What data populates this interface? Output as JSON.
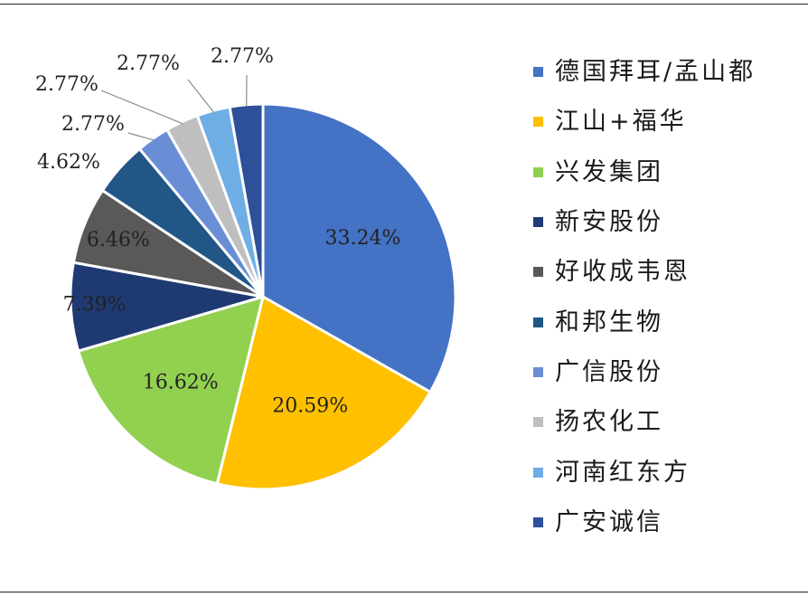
{
  "chart_data": {
    "type": "pie",
    "title": "",
    "start_angle_deg": 0,
    "direction": "clockwise",
    "legend_position": "right",
    "series": [
      {
        "name": "德国拜耳/孟山都",
        "value": 33.24,
        "label": "33.24%",
        "color": "#4472C4"
      },
      {
        "name": "江山+福华",
        "value": 20.59,
        "label": "20.59%",
        "color": "#FFC000"
      },
      {
        "name": "兴发集团",
        "value": 16.62,
        "label": "16.62%",
        "color": "#92D050"
      },
      {
        "name": "新安股份",
        "value": 7.39,
        "label": "7.39%",
        "color": "#1F3A73"
      },
      {
        "name": "好收成韦恩",
        "value": 6.46,
        "label": "6.46%",
        "color": "#595959"
      },
      {
        "name": "和邦生物",
        "value": 4.62,
        "label": "4.62%",
        "color": "#215687"
      },
      {
        "name": "广信股份",
        "value": 2.77,
        "label": "2.77%",
        "color": "#6A8ED6"
      },
      {
        "name": "扬农化工",
        "value": 2.77,
        "label": "2.77%",
        "color": "#BFBFBF"
      },
      {
        "name": "河南红东方",
        "value": 2.77,
        "label": "2.77%",
        "color": "#6FAEE4"
      },
      {
        "name": "广安诚信",
        "value": 2.77,
        "label": "2.77%",
        "color": "#2E4F9A"
      }
    ]
  }
}
